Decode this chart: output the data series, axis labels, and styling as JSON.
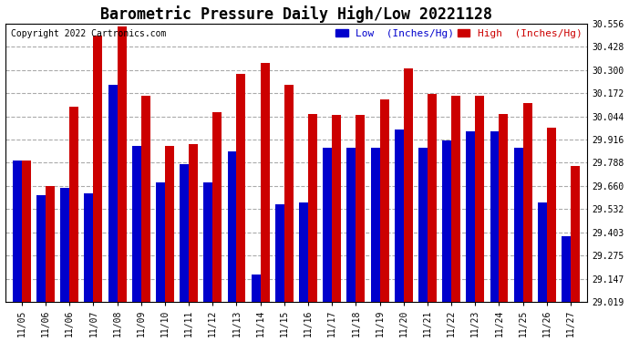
{
  "title": "Barometric Pressure Daily High/Low 20221128",
  "copyright": "Copyright 2022 Cartronics.com",
  "dates": [
    "11/05",
    "11/06",
    "11/06",
    "11/07",
    "11/08",
    "11/09",
    "11/10",
    "11/11",
    "11/12",
    "11/13",
    "11/14",
    "11/15",
    "11/16",
    "11/17",
    "11/18",
    "11/19",
    "11/20",
    "11/21",
    "11/22",
    "11/23",
    "11/24",
    "11/25",
    "11/26",
    "11/27"
  ],
  "low_values": [
    29.8,
    29.61,
    29.65,
    29.62,
    30.22,
    29.88,
    29.68,
    29.78,
    29.68,
    29.85,
    29.17,
    29.56,
    29.57,
    29.87,
    29.87,
    29.87,
    29.97,
    29.87,
    29.91,
    29.96,
    29.96,
    29.87,
    29.57,
    29.38
  ],
  "high_values": [
    29.8,
    29.66,
    30.1,
    30.49,
    30.54,
    30.16,
    29.88,
    29.89,
    30.07,
    30.28,
    30.34,
    30.22,
    30.06,
    30.05,
    30.05,
    30.14,
    30.31,
    30.17,
    30.16,
    30.16,
    30.06,
    30.12,
    29.98,
    29.77
  ],
  "low_color": "#0000cc",
  "high_color": "#cc0000",
  "bg_color": "#ffffff",
  "grid_color": "#aaaaaa",
  "ylim_min": 29.019,
  "ylim_max": 30.556,
  "yticks": [
    29.019,
    29.147,
    29.275,
    29.403,
    29.532,
    29.66,
    29.788,
    29.916,
    30.044,
    30.172,
    30.3,
    30.428,
    30.556
  ],
  "title_fontsize": 12,
  "label_fontsize": 8,
  "tick_fontsize": 7,
  "copyright_fontsize": 7
}
